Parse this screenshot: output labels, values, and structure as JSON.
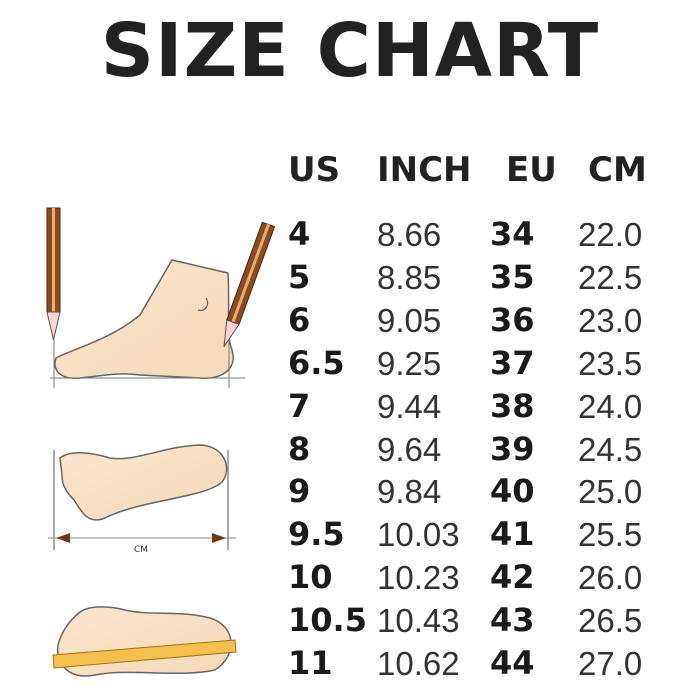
{
  "title": "SIZE CHART",
  "illustration_label": "CM",
  "table": {
    "headers": [
      "US",
      "INCH",
      "EU",
      "CM"
    ],
    "rows": [
      [
        "4",
        "8.66",
        "34",
        "22.0"
      ],
      [
        "5",
        "8.85",
        "35",
        "22.5"
      ],
      [
        "6",
        "9.05",
        "36",
        "23.0"
      ],
      [
        "6.5",
        "9.25",
        "37",
        "23.5"
      ],
      [
        "7",
        "9.44",
        "38",
        "24.0"
      ],
      [
        "8",
        "9.64",
        "39",
        "24.5"
      ],
      [
        "9",
        "9.84",
        "40",
        "25.0"
      ],
      [
        "9.5",
        "10.03",
        "41",
        "25.5"
      ],
      [
        "10",
        "10.23",
        "42",
        "26.0"
      ],
      [
        "10.5",
        "10.43",
        "43",
        "26.5"
      ],
      [
        "11",
        "10.62",
        "44",
        "27.0"
      ]
    ]
  }
}
